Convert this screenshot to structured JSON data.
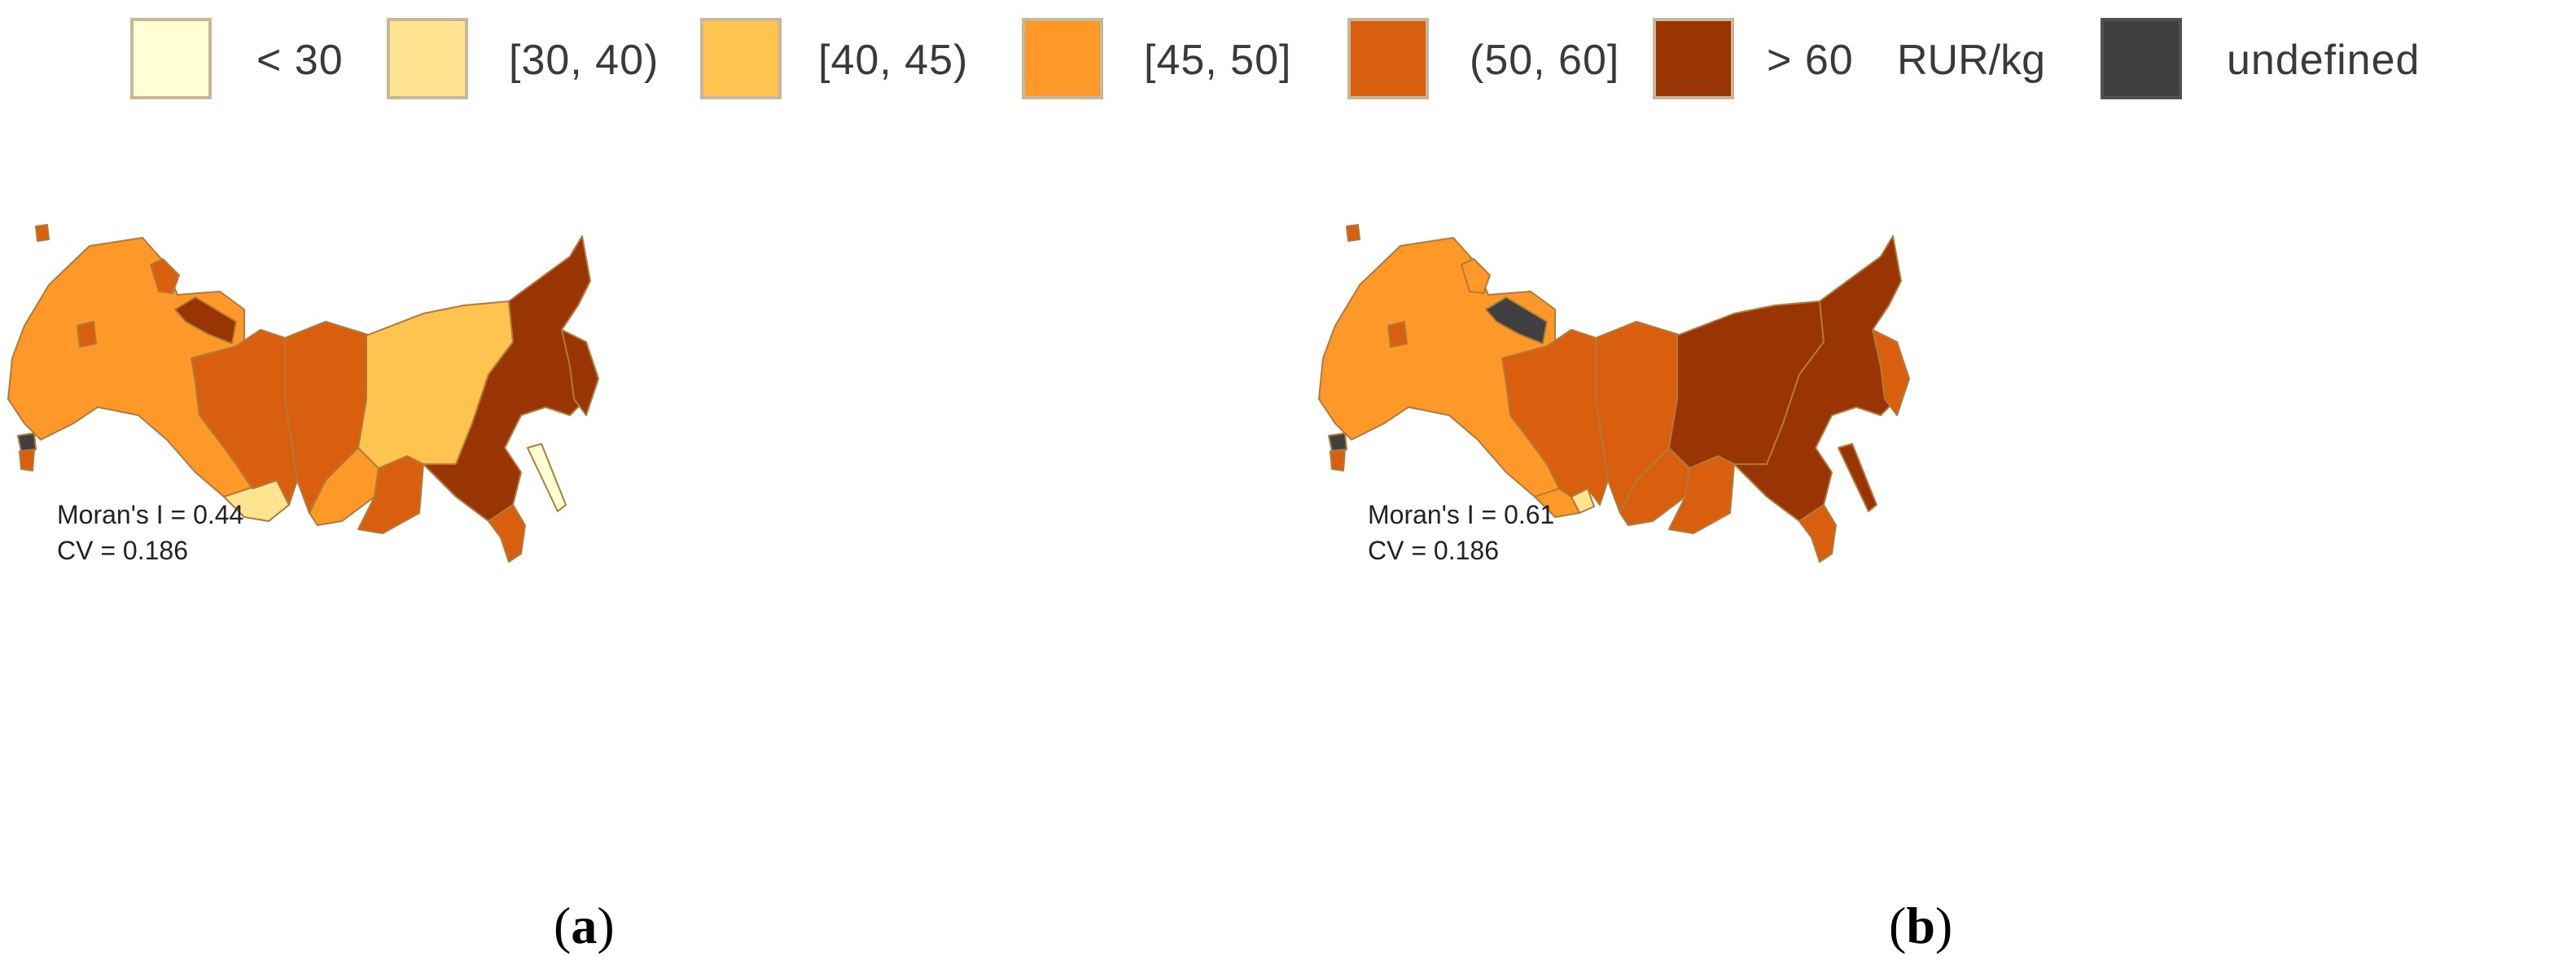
{
  "legend": {
    "items": [
      {
        "label": "< 30",
        "color": "#ffffd4"
      },
      {
        "label": "[30, 40)",
        "color": "#fee391"
      },
      {
        "label": "[40, 45)",
        "color": "#fec44f"
      },
      {
        "label": "[45, 50]",
        "color": "#fe9929"
      },
      {
        "label": "(50, 60]",
        "color": "#d95f0e"
      },
      {
        "label": "> 60",
        "color": "#993404"
      }
    ],
    "unit": "RUR/kg",
    "undefined": {
      "label": "undefined",
      "color": "#404040"
    }
  },
  "panels": [
    {
      "id": "a",
      "caption_letter": "a",
      "morans_i": "Moran's I = 0.44",
      "cv": "CV = 0.186"
    },
    {
      "id": "b",
      "caption_letter": "b",
      "morans_i": "Moran's I = 0.61",
      "cv": "CV = 0.186"
    }
  ]
}
